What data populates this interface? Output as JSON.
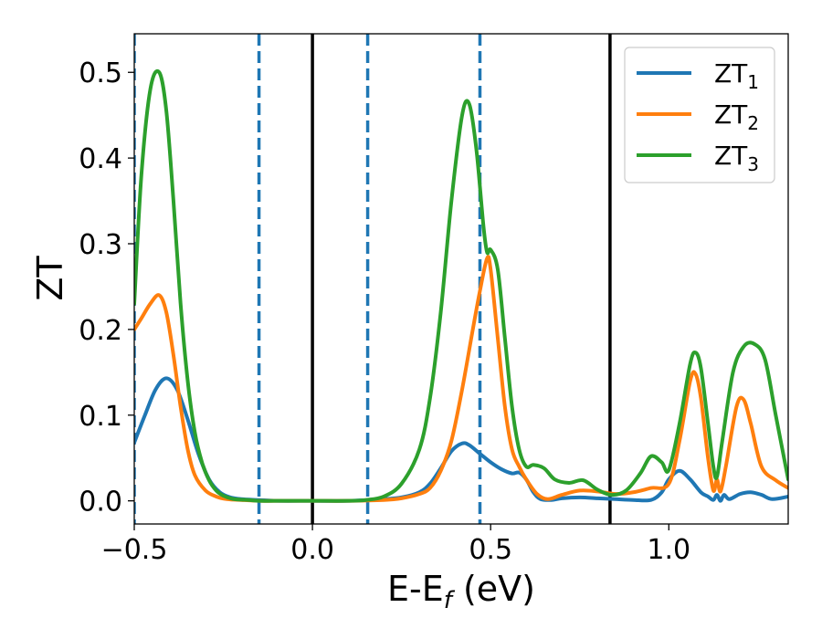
{
  "chart_data": {
    "type": "line",
    "xlabel_main": "E-E",
    "xlabel_sub": "f",
    "xlabel_unit": " (eV)",
    "ylabel": "ZT",
    "xlim": [
      -0.5,
      1.335
    ],
    "ylim": [
      -0.027,
      0.545
    ],
    "x_ticks": [
      -0.5,
      0.0,
      0.5,
      1.0
    ],
    "x_tick_labels": [
      "−0.5",
      "0.0",
      "0.5",
      "1.0"
    ],
    "y_ticks": [
      0.0,
      0.1,
      0.2,
      0.3,
      0.4,
      0.5
    ],
    "y_tick_labels": [
      "0.0",
      "0.1",
      "0.2",
      "0.3",
      "0.4",
      "0.5"
    ],
    "grid": false,
    "legend_position": "top-right",
    "vertical_lines": [
      {
        "x": -0.5,
        "style": "dashed",
        "color": "#1f77b4"
      },
      {
        "x": -0.15,
        "style": "dashed",
        "color": "#1f77b4"
      },
      {
        "x": 0.155,
        "style": "dashed",
        "color": "#1f77b4"
      },
      {
        "x": 0.47,
        "style": "dashed",
        "color": "#1f77b4"
      },
      {
        "x": 0.0,
        "style": "solid",
        "color": "#000000"
      },
      {
        "x": 0.835,
        "style": "solid",
        "color": "#000000"
      }
    ],
    "series": [
      {
        "name": "ZT",
        "sub": "1",
        "color": "#1f77b4",
        "x": [
          -0.5,
          -0.47,
          -0.44,
          -0.41,
          -0.38,
          -0.35,
          -0.32,
          -0.29,
          -0.26,
          -0.23,
          -0.2,
          -0.15,
          -0.1,
          0.0,
          0.1,
          0.2,
          0.25,
          0.3,
          0.33,
          0.36,
          0.39,
          0.42,
          0.44,
          0.47,
          0.5,
          0.53,
          0.56,
          0.58,
          0.6,
          0.62,
          0.64,
          0.67,
          0.7,
          0.75,
          0.8,
          0.85,
          0.9,
          0.95,
          0.98,
          1.0,
          1.03,
          1.06,
          1.09,
          1.11,
          1.125,
          1.135,
          1.145,
          1.155,
          1.17,
          1.2,
          1.23,
          1.26,
          1.29,
          1.335
        ],
        "y": [
          0.068,
          0.1,
          0.13,
          0.143,
          0.13,
          0.095,
          0.055,
          0.025,
          0.01,
          0.004,
          0.002,
          0.001,
          0.0,
          0.0,
          0.0,
          0.002,
          0.004,
          0.01,
          0.02,
          0.038,
          0.058,
          0.067,
          0.065,
          0.055,
          0.045,
          0.037,
          0.032,
          0.033,
          0.025,
          0.01,
          0.002,
          0.001,
          0.003,
          0.004,
          0.003,
          0.002,
          0.001,
          0.001,
          0.01,
          0.025,
          0.035,
          0.025,
          0.01,
          0.005,
          0.001,
          0.007,
          0.0,
          0.007,
          0.002,
          0.008,
          0.01,
          0.007,
          0.002,
          0.005
        ]
      },
      {
        "name": "ZT",
        "sub": "2",
        "color": "#ff7f0e",
        "x": [
          -0.5,
          -0.48,
          -0.455,
          -0.43,
          -0.41,
          -0.39,
          -0.37,
          -0.35,
          -0.33,
          -0.3,
          -0.27,
          -0.24,
          -0.2,
          -0.15,
          -0.1,
          0.0,
          0.1,
          0.2,
          0.25,
          0.3,
          0.33,
          0.36,
          0.39,
          0.42,
          0.45,
          0.47,
          0.49,
          0.5,
          0.52,
          0.54,
          0.56,
          0.58,
          0.6,
          0.63,
          0.66,
          0.7,
          0.75,
          0.8,
          0.85,
          0.9,
          0.95,
          1.0,
          1.03,
          1.06,
          1.075,
          1.09,
          1.11,
          1.125,
          1.135,
          1.145,
          1.16,
          1.19,
          1.21,
          1.23,
          1.26,
          1.3,
          1.335
        ],
        "y": [
          0.2,
          0.213,
          0.23,
          0.24,
          0.22,
          0.17,
          0.11,
          0.06,
          0.03,
          0.012,
          0.005,
          0.002,
          0.001,
          0.0,
          0.0,
          0.0,
          0.0,
          0.001,
          0.003,
          0.008,
          0.015,
          0.035,
          0.07,
          0.13,
          0.2,
          0.245,
          0.283,
          0.27,
          0.19,
          0.11,
          0.06,
          0.04,
          0.025,
          0.008,
          0.002,
          0.007,
          0.012,
          0.011,
          0.008,
          0.01,
          0.015,
          0.02,
          0.07,
          0.14,
          0.148,
          0.12,
          0.05,
          0.012,
          0.025,
          0.011,
          0.04,
          0.11,
          0.118,
          0.09,
          0.04,
          0.024,
          0.015
        ]
      },
      {
        "name": "ZT",
        "sub": "3",
        "color": "#2ca02c",
        "x": [
          -0.5,
          -0.48,
          -0.455,
          -0.43,
          -0.41,
          -0.39,
          -0.37,
          -0.35,
          -0.33,
          -0.31,
          -0.29,
          -0.27,
          -0.25,
          -0.22,
          -0.18,
          -0.15,
          -0.1,
          0.0,
          0.1,
          0.15,
          0.2,
          0.25,
          0.3,
          0.33,
          0.36,
          0.39,
          0.42,
          0.44,
          0.46,
          0.48,
          0.49,
          0.5,
          0.52,
          0.54,
          0.56,
          0.58,
          0.6,
          0.62,
          0.65,
          0.68,
          0.72,
          0.76,
          0.8,
          0.84,
          0.88,
          0.92,
          0.95,
          0.98,
          1.0,
          1.03,
          1.06,
          1.075,
          1.09,
          1.11,
          1.125,
          1.135,
          1.15,
          1.18,
          1.21,
          1.24,
          1.27,
          1.3,
          1.335
        ],
        "y": [
          0.23,
          0.38,
          0.48,
          0.5,
          0.455,
          0.35,
          0.23,
          0.14,
          0.08,
          0.045,
          0.024,
          0.012,
          0.006,
          0.002,
          0.001,
          0.0,
          0.0,
          0.0,
          0.0,
          0.001,
          0.005,
          0.02,
          0.06,
          0.12,
          0.22,
          0.35,
          0.45,
          0.463,
          0.41,
          0.32,
          0.29,
          0.293,
          0.27,
          0.19,
          0.11,
          0.06,
          0.04,
          0.042,
          0.038,
          0.025,
          0.021,
          0.024,
          0.013,
          0.007,
          0.012,
          0.032,
          0.052,
          0.045,
          0.036,
          0.09,
          0.16,
          0.173,
          0.155,
          0.09,
          0.04,
          0.028,
          0.07,
          0.15,
          0.18,
          0.183,
          0.165,
          0.1,
          0.025
        ]
      }
    ]
  }
}
